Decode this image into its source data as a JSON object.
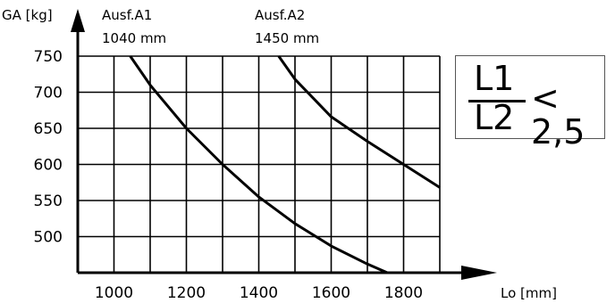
{
  "chart_data": {
    "type": "line",
    "ylabel": "GA [kg]",
    "xlabel": "Lo [mm]",
    "xlim": [
      900,
      1900
    ],
    "ylim": [
      450,
      750
    ],
    "x_ticks": [
      1000,
      1200,
      1400,
      1600,
      1800
    ],
    "y_ticks": [
      500,
      550,
      600,
      650,
      700,
      750
    ],
    "grid": true,
    "series": [
      {
        "name": "Ausf.A1",
        "sublabel": "1040 mm",
        "points": [
          [
            1045,
            750
          ],
          [
            1100,
            710
          ],
          [
            1200,
            650
          ],
          [
            1300,
            600
          ],
          [
            1400,
            555
          ],
          [
            1500,
            518
          ],
          [
            1600,
            487
          ],
          [
            1700,
            462
          ],
          [
            1755,
            450
          ]
        ]
      },
      {
        "name": "Ausf.A2",
        "sublabel": "1450 mm",
        "points": [
          [
            1455,
            750
          ],
          [
            1500,
            718
          ],
          [
            1600,
            666
          ],
          [
            1700,
            632
          ],
          [
            1800,
            600
          ],
          [
            1900,
            568
          ]
        ]
      }
    ],
    "annotation": {
      "numerator": "L1",
      "denominator": "L2",
      "relation": "< 2,5"
    }
  }
}
